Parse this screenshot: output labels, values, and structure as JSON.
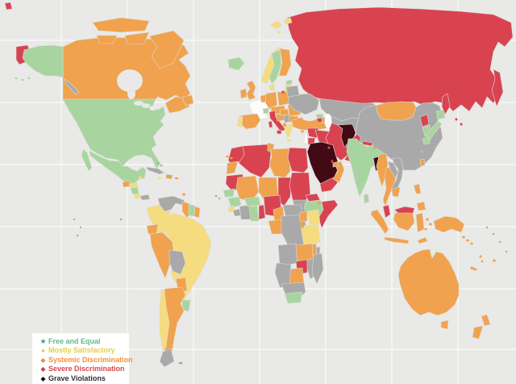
{
  "canvas": {
    "background": "#e9e9e7",
    "gridline_color": "#f7f7f5",
    "border_color": "#dcdcda",
    "sea_color": "#e9e9e7",
    "lake_white": "#fcfcfb"
  },
  "palette": {
    "free_equal": "#a8d59f",
    "mostly_satisfactory": "#f5dc7f",
    "systemic_discrimination": "#f0a24e",
    "severe_discrimination": "#d8434f",
    "grave_violations": "#420a14",
    "no_data": "#a9a9a9",
    "not_rated": "#fcfcfb"
  },
  "legend": {
    "background": "#ffffff",
    "items": [
      {
        "label": "Free and Equal",
        "category": "free_equal",
        "marker": "★",
        "marker_color": "#36a876",
        "text_color": "#5eba88"
      },
      {
        "label": "Mostly Satisfactory",
        "category": "mostly_satisfactory",
        "marker": "●",
        "marker_color": "#e2c63c",
        "text_color": "#e7cf45"
      },
      {
        "label": "Systemic Discrimination",
        "category": "systemic_discrimination",
        "marker": "◆",
        "marker_color": "#e88f3d",
        "text_color": "#f0913f"
      },
      {
        "label": "Severe Discrimination",
        "category": "severe_discrimination",
        "marker": "◆",
        "marker_color": "#c8434e",
        "text_color": "#d2494f"
      },
      {
        "label": "Grave Violations",
        "category": "grave_violations",
        "marker": "◆",
        "marker_color": "#220b10",
        "text_color": "#2f2f2f"
      }
    ]
  },
  "map": {
    "regions": [
      {
        "id": "arctic-wrap",
        "category": "severe_discrimination"
      },
      {
        "id": "chukotka",
        "category": "severe_discrimination"
      },
      {
        "id": "russia",
        "category": "severe_discrimination"
      },
      {
        "id": "kamchatka",
        "category": "severe_discrimination"
      },
      {
        "id": "sakhalin",
        "category": "severe_discrimination"
      },
      {
        "id": "canada",
        "category": "systemic_discrimination"
      },
      {
        "id": "canada-arctic-a",
        "category": "systemic_discrimination"
      },
      {
        "id": "canada-arctic-b",
        "category": "systemic_discrimination"
      },
      {
        "id": "canada-arctic-c",
        "category": "systemic_discrimination"
      },
      {
        "id": "canada-arctic-d",
        "category": "systemic_discrimination"
      },
      {
        "id": "canada-maritimes",
        "category": "systemic_discrimination"
      },
      {
        "id": "newfoundland",
        "category": "systemic_discrimination"
      },
      {
        "id": "alaska",
        "category": "free_equal"
      },
      {
        "id": "alaska-panhandle",
        "category": "no_data"
      },
      {
        "id": "usa",
        "category": "free_equal"
      },
      {
        "id": "baja",
        "category": "free_equal"
      },
      {
        "id": "mexico",
        "category": "free_equal"
      },
      {
        "id": "guatemala",
        "category": "systemic_discrimination"
      },
      {
        "id": "honduras",
        "category": "mostly_satisfactory"
      },
      {
        "id": "nicaragua",
        "category": "free_equal"
      },
      {
        "id": "costa-rica",
        "category": "mostly_satisfactory"
      },
      {
        "id": "panama",
        "category": "no_data"
      },
      {
        "id": "cuba",
        "category": "no_data"
      },
      {
        "id": "hispaniola",
        "category": "systemic_discrimination"
      },
      {
        "id": "iceland",
        "category": "free_equal"
      },
      {
        "id": "svalbard-a",
        "category": "mostly_satisfactory"
      },
      {
        "id": "svalbard-b",
        "category": "mostly_satisfactory"
      },
      {
        "id": "venezuela",
        "category": "no_data"
      },
      {
        "id": "colombia",
        "category": "mostly_satisfactory"
      },
      {
        "id": "guyana",
        "category": "systemic_discrimination"
      },
      {
        "id": "suriname",
        "category": "free_equal"
      },
      {
        "id": "french-guiana",
        "category": "systemic_discrimination"
      },
      {
        "id": "ecuador",
        "category": "systemic_discrimination"
      },
      {
        "id": "peru",
        "category": "systemic_discrimination"
      },
      {
        "id": "brazil",
        "category": "mostly_satisfactory"
      },
      {
        "id": "bolivia",
        "category": "no_data"
      },
      {
        "id": "paraguay",
        "category": "systemic_discrimination"
      },
      {
        "id": "uruguay",
        "category": "free_equal"
      },
      {
        "id": "argentina",
        "category": "systemic_discrimination"
      },
      {
        "id": "chile",
        "category": "mostly_satisfactory"
      },
      {
        "id": "patagonia",
        "category": "no_data"
      },
      {
        "id": "norway",
        "category": "mostly_satisfactory"
      },
      {
        "id": "sweden",
        "category": "free_equal"
      },
      {
        "id": "finland",
        "category": "systemic_discrimination"
      },
      {
        "id": "denmark",
        "category": "mostly_satisfactory"
      },
      {
        "id": "estonia",
        "category": "free_equal"
      },
      {
        "id": "latvia",
        "category": "mostly_satisfactory"
      },
      {
        "id": "lithuania",
        "category": "mostly_satisfactory"
      },
      {
        "id": "uk",
        "category": "systemic_discrimination"
      },
      {
        "id": "ireland",
        "category": "systemic_discrimination"
      },
      {
        "id": "france",
        "category": "not_rated"
      },
      {
        "id": "spain",
        "category": "systemic_discrimination"
      },
      {
        "id": "portugal",
        "category": "mostly_satisfactory"
      },
      {
        "id": "benelux",
        "category": "systemic_discrimination"
      },
      {
        "id": "germany",
        "category": "systemic_discrimination"
      },
      {
        "id": "poland",
        "category": "systemic_discrimination"
      },
      {
        "id": "czech-austria",
        "category": "systemic_discrimination"
      },
      {
        "id": "switzerland",
        "category": "free_equal"
      },
      {
        "id": "italy",
        "category": "severe_discrimination"
      },
      {
        "id": "sardinia",
        "category": "severe_discrimination"
      },
      {
        "id": "sicily",
        "category": "severe_discrimination"
      },
      {
        "id": "croatia",
        "category": "systemic_discrimination"
      },
      {
        "id": "serbia",
        "category": "no_data"
      },
      {
        "id": "greece",
        "category": "mostly_satisfactory"
      },
      {
        "id": "hungary",
        "category": "systemic_discrimination"
      },
      {
        "id": "romania",
        "category": "systemic_discrimination"
      },
      {
        "id": "bulgaria",
        "category": "systemic_discrimination"
      },
      {
        "id": "ukraine",
        "category": "no_data"
      },
      {
        "id": "belarus",
        "category": "no_data"
      },
      {
        "id": "kazakhstan",
        "category": "no_data"
      },
      {
        "id": "central-asia",
        "category": "no_data"
      },
      {
        "id": "china",
        "category": "no_data"
      },
      {
        "id": "mongolia",
        "category": "systemic_discrimination"
      },
      {
        "id": "turkey",
        "category": "systemic_discrimination"
      },
      {
        "id": "syria",
        "category": "severe_discrimination"
      },
      {
        "id": "jordan",
        "category": "severe_discrimination"
      },
      {
        "id": "iraq",
        "category": "severe_discrimination"
      },
      {
        "id": "iran",
        "category": "severe_discrimination"
      },
      {
        "id": "afghanistan",
        "category": "grave_violations"
      },
      {
        "id": "pakistan",
        "category": "severe_discrimination"
      },
      {
        "id": "saudi",
        "category": "grave_violations"
      },
      {
        "id": "yemen",
        "category": "severe_discrimination"
      },
      {
        "id": "oman",
        "category": "systemic_discrimination"
      },
      {
        "id": "uae",
        "category": "systemic_discrimination"
      },
      {
        "id": "israel",
        "category": "not_rated"
      },
      {
        "id": "georgia",
        "category": "free_equal"
      },
      {
        "id": "armenia",
        "category": "severe_discrimination"
      },
      {
        "id": "azerbaijan",
        "category": "systemic_discrimination"
      },
      {
        "id": "morocco",
        "category": "severe_discrimination"
      },
      {
        "id": "wsahara",
        "category": "systemic_discrimination"
      },
      {
        "id": "algeria",
        "category": "severe_discrimination"
      },
      {
        "id": "tunisia",
        "category": "systemic_discrimination"
      },
      {
        "id": "libya",
        "category": "systemic_discrimination"
      },
      {
        "id": "egypt",
        "category": "severe_discrimination"
      },
      {
        "id": "mauritania",
        "category": "severe_discrimination"
      },
      {
        "id": "mali",
        "category": "systemic_discrimination"
      },
      {
        "id": "niger",
        "category": "systemic_discrimination"
      },
      {
        "id": "chad",
        "category": "severe_discrimination"
      },
      {
        "id": "sudan",
        "category": "severe_discrimination"
      },
      {
        "id": "south-sudan",
        "category": "no_data"
      },
      {
        "id": "car",
        "category": "no_data"
      },
      {
        "id": "eritrea",
        "category": "severe_discrimination"
      },
      {
        "id": "ethiopia",
        "category": "free_equal"
      },
      {
        "id": "somalia",
        "category": "severe_discrimination"
      },
      {
        "id": "senegal",
        "category": "free_equal"
      },
      {
        "id": "guinea",
        "category": "free_equal"
      },
      {
        "id": "sierra-leone",
        "category": "mostly_satisfactory"
      },
      {
        "id": "liberia",
        "category": "no_data"
      },
      {
        "id": "ivory-coast",
        "category": "no_data"
      },
      {
        "id": "burkina",
        "category": "free_equal"
      },
      {
        "id": "ghana",
        "category": "free_equal"
      },
      {
        "id": "togo-benin",
        "category": "severe_discrimination"
      },
      {
        "id": "nigeria",
        "category": "severe_discrimination"
      },
      {
        "id": "cameroon",
        "category": "systemic_discrimination"
      },
      {
        "id": "gabon-congo",
        "category": "systemic_discrimination"
      },
      {
        "id": "drc",
        "category": "no_data"
      },
      {
        "id": "uganda",
        "category": "systemic_discrimination"
      },
      {
        "id": "kenya",
        "category": "mostly_satisfactory"
      },
      {
        "id": "tanzania",
        "category": "mostly_satisfactory"
      },
      {
        "id": "angola",
        "category": "no_data"
      },
      {
        "id": "mozambique",
        "category": "no_data"
      },
      {
        "id": "zambia",
        "category": "systemic_discrimination"
      },
      {
        "id": "malawi",
        "category": "systemic_discrimination"
      },
      {
        "id": "zimbabwe",
        "category": "severe_discrimination"
      },
      {
        "id": "botswana",
        "category": "systemic_discrimination"
      },
      {
        "id": "namibia",
        "category": "no_data"
      },
      {
        "id": "south-africa",
        "category": "no_data"
      },
      {
        "id": "south-africa-cape",
        "category": "free_equal"
      },
      {
        "id": "madagascar",
        "category": "no_data"
      },
      {
        "id": "north-korea",
        "category": "severe_discrimination"
      },
      {
        "id": "south-korea",
        "category": "free_equal"
      },
      {
        "id": "hokkaido",
        "category": "free_equal"
      },
      {
        "id": "honshu",
        "category": "free_equal"
      },
      {
        "id": "kyushu",
        "category": "free_equal"
      },
      {
        "id": "nepal",
        "category": "severe_discrimination"
      },
      {
        "id": "india",
        "category": "free_equal"
      },
      {
        "id": "sri-lanka",
        "category": "free_equal"
      },
      {
        "id": "bangladesh",
        "category": "grave_violations"
      },
      {
        "id": "myanmar",
        "category": "systemic_discrimination"
      },
      {
        "id": "thailand",
        "category": "systemic_discrimination"
      },
      {
        "id": "laos",
        "category": "no_data"
      },
      {
        "id": "vietnam",
        "category": "no_data"
      },
      {
        "id": "cambodia",
        "category": "systemic_discrimination"
      },
      {
        "id": "malaysia",
        "category": "severe_discrimination"
      },
      {
        "id": "sumatra",
        "category": "systemic_discrimination"
      },
      {
        "id": "java",
        "category": "systemic_discrimination"
      },
      {
        "id": "borneo-my",
        "category": "severe_discrimination"
      },
      {
        "id": "borneo-id",
        "category": "systemic_discrimination"
      },
      {
        "id": "sulawesi",
        "category": "systemic_discrimination"
      },
      {
        "id": "luzon",
        "category": "systemic_discrimination"
      },
      {
        "id": "mindanao",
        "category": "systemic_discrimination"
      },
      {
        "id": "new-guinea",
        "category": "systemic_discrimination"
      },
      {
        "id": "timor",
        "category": "systemic_discrimination"
      },
      {
        "id": "taiwan",
        "category": "systemic_discrimination"
      },
      {
        "id": "australia",
        "category": "systemic_discrimination"
      },
      {
        "id": "tasmania",
        "category": "systemic_discrimination"
      },
      {
        "id": "nz-north",
        "category": "systemic_discrimination"
      },
      {
        "id": "nz-south",
        "category": "systemic_discrimination"
      },
      {
        "id": "new-caledonia",
        "category": "systemic_discrimination"
      },
      {
        "id": "albania",
        "category": "systemic_discrimination"
      },
      {
        "id": "moldova",
        "category": "no_data"
      },
      {
        "id": "kaliningrad",
        "category": "severe_discrimination"
      },
      {
        "id": "crete",
        "category": "mostly_satisfactory"
      },
      {
        "id": "cyprus",
        "category": "systemic_discrimination"
      },
      {
        "id": "qatar",
        "category": "severe_discrimination"
      },
      {
        "id": "kuwait",
        "category": "severe_discrimination"
      },
      {
        "id": "djibouti",
        "category": "systemic_discrimination"
      },
      {
        "id": "bhutan",
        "category": "systemic_discrimination"
      },
      {
        "id": "okinawa",
        "category": "free_equal"
      },
      {
        "id": "maluku",
        "category": "systemic_discrimination"
      },
      {
        "id": "solomon",
        "category": "systemic_discrimination"
      },
      {
        "id": "fiji",
        "category": "systemic_discrimination"
      },
      {
        "id": "vanuatu",
        "category": "systemic_discrimination"
      },
      {
        "id": "pacific-speck",
        "category": "no_data"
      },
      {
        "id": "bahamas",
        "category": "no_data"
      },
      {
        "id": "jamaica",
        "category": "mostly_satisfactory"
      },
      {
        "id": "puerto-rico",
        "category": "systemic_discrimination"
      },
      {
        "id": "trinidad",
        "category": "systemic_discrimination"
      },
      {
        "id": "belize",
        "category": "mostly_satisfactory"
      },
      {
        "id": "canary",
        "category": "systemic_discrimination"
      },
      {
        "id": "cape-verde",
        "category": "no_data"
      },
      {
        "id": "rwanda-burundi",
        "category": "systemic_discrimination"
      },
      {
        "id": "kuril",
        "category": "severe_discrimination"
      },
      {
        "id": "franz-josef",
        "category": "severe_discrimination"
      },
      {
        "id": "aleutian",
        "category": "free_equal"
      },
      {
        "id": "svalbard-dot",
        "category": "mostly_satisfactory"
      },
      {
        "id": "galapagos",
        "category": "no_data"
      },
      {
        "id": "falklands",
        "category": "no_data"
      }
    ]
  }
}
